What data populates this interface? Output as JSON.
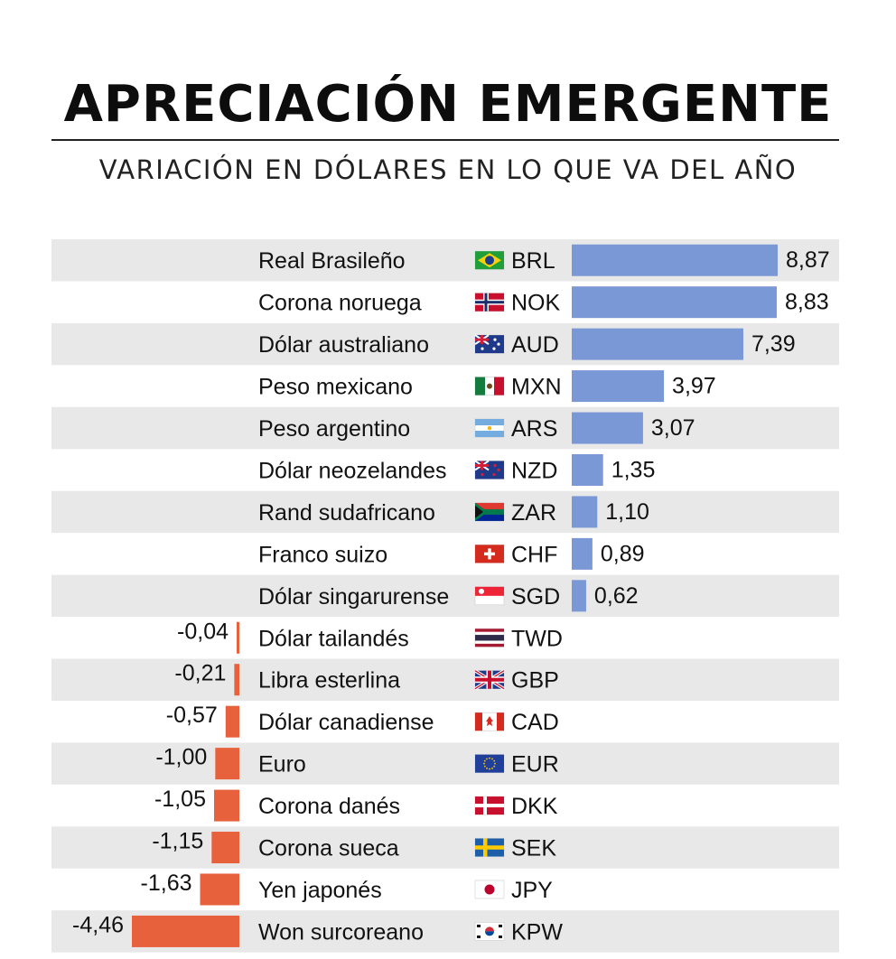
{
  "title": "APRECIACIÓN EMERGENTE",
  "subtitle": "VARIACIÓN EN DÓLARES EN LO QUE VA DEL AÑO",
  "colors": {
    "positive": "#7a97d6",
    "negative": "#e8613d",
    "stripe": "#e8e8e8"
  },
  "chart_data": {
    "type": "bar",
    "orientation": "horizontal",
    "title": "APRECIACIÓN EMERGENTE",
    "subtitle": "VARIACIÓN EN DÓLARES EN LO QUE VA DEL AÑO",
    "rows": [
      {
        "name": "Real Brasileño",
        "code": "BRL",
        "flag": "brazil-flag",
        "value": 8.87,
        "label": "8,87"
      },
      {
        "name": "Corona noruega",
        "code": "NOK",
        "flag": "norway-flag",
        "value": 8.83,
        "label": "8,83"
      },
      {
        "name": "Dólar australiano",
        "code": "AUD",
        "flag": "australia-flag",
        "value": 7.39,
        "label": "7,39"
      },
      {
        "name": "Peso mexicano",
        "code": "MXN",
        "flag": "mexico-flag",
        "value": 3.97,
        "label": "3,97"
      },
      {
        "name": "Peso argentino",
        "code": "ARS",
        "flag": "argentina-flag",
        "value": 3.07,
        "label": "3,07"
      },
      {
        "name": "Dólar neozelandes",
        "code": "NZD",
        "flag": "new-zealand-flag",
        "value": 1.35,
        "label": "1,35"
      },
      {
        "name": "Rand sudafricano",
        "code": "ZAR",
        "flag": "south-africa-flag",
        "value": 1.1,
        "label": "1,10"
      },
      {
        "name": "Franco suizo",
        "code": "CHF",
        "flag": "switzerland-flag",
        "value": 0.89,
        "label": "0,89"
      },
      {
        "name": "Dólar singarurense",
        "code": "SGD",
        "flag": "singapore-flag",
        "value": 0.62,
        "label": "0,62"
      },
      {
        "name": "Dólar tailandés",
        "code": "TWD",
        "flag": "thailand-flag",
        "value": -0.04,
        "label": "-0,04"
      },
      {
        "name": "Libra esterlina",
        "code": "GBP",
        "flag": "uk-flag",
        "value": -0.21,
        "label": "-0,21"
      },
      {
        "name": "Dólar canadiense",
        "code": "CAD",
        "flag": "canada-flag",
        "value": -0.57,
        "label": "-0,57"
      },
      {
        "name": "Euro",
        "code": "EUR",
        "flag": "eu-flag",
        "value": -1.0,
        "label": "-1,00"
      },
      {
        "name": "Corona danés",
        "code": "DKK",
        "flag": "denmark-flag",
        "value": -1.05,
        "label": "-1,05"
      },
      {
        "name": "Corona sueca",
        "code": "SEK",
        "flag": "sweden-flag",
        "value": -1.15,
        "label": "-1,15"
      },
      {
        "name": "Yen japonés",
        "code": "JPY",
        "flag": "japan-flag",
        "value": -1.63,
        "label": "-1,63"
      },
      {
        "name": "Won surcoreano",
        "code": "KPW",
        "flag": "south-korea-flag",
        "value": -4.46,
        "label": "-4,46"
      }
    ]
  }
}
